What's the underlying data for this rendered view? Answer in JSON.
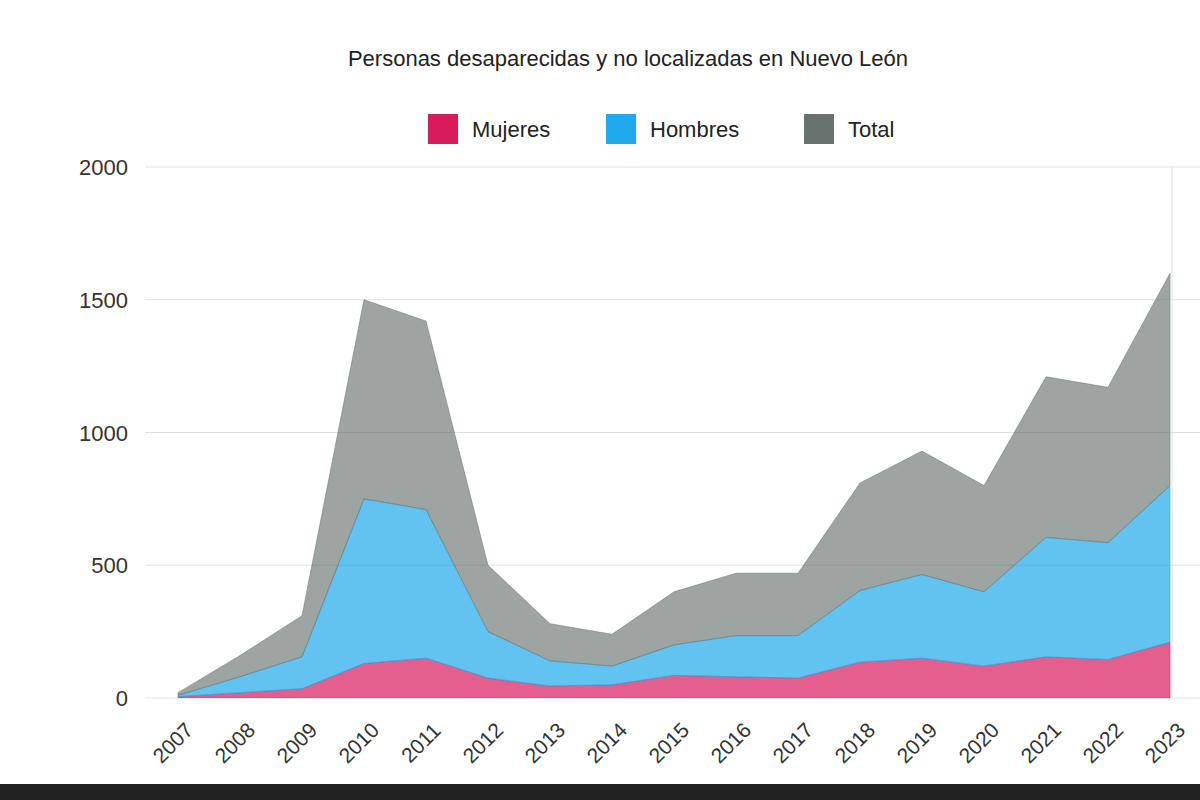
{
  "chart_data": {
    "type": "area",
    "title": "Personas desaparecidas y no localizadas en Nuevo León",
    "categories": [
      "2007",
      "2008",
      "2009",
      "2010",
      "2011",
      "2012",
      "2013",
      "2014",
      "2015",
      "2016",
      "2017",
      "2018",
      "2019",
      "2020",
      "2021",
      "2022",
      "2023"
    ],
    "series": [
      {
        "name": "Mujeres",
        "color": "#d81b5c",
        "values": [
          5,
          20,
          35,
          130,
          150,
          75,
          45,
          50,
          85,
          80,
          75,
          135,
          150,
          120,
          155,
          145,
          210
        ]
      },
      {
        "name": "Hombres",
        "color": "#1fa9ea",
        "values": [
          5,
          60,
          120,
          620,
          560,
          175,
          95,
          70,
          115,
          155,
          160,
          270,
          315,
          280,
          450,
          440,
          590
        ]
      },
      {
        "name": "Total",
        "color": "#68736f",
        "values": [
          10,
          80,
          155,
          750,
          710,
          250,
          140,
          120,
          200,
          235,
          235,
          405,
          465,
          400,
          605,
          585,
          800
        ]
      }
    ],
    "stacked": true,
    "ylim": [
      0,
      2000
    ],
    "yticks": [
      0,
      500,
      1000,
      1500,
      2000
    ],
    "grid": true,
    "legend": "top"
  }
}
